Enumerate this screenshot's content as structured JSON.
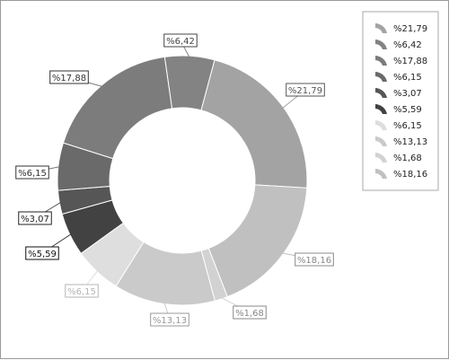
{
  "chart_data": {
    "type": "pie",
    "title": "",
    "values": [
      21.79,
      18.16,
      1.68,
      13.13,
      6.15,
      5.59,
      3.07,
      6.15,
      17.88,
      6.42
    ],
    "labels": [
      "%21,79",
      "%18,16",
      "%1,68",
      "%13,13",
      "%6,15",
      "%5,59",
      "%3,07",
      "%6,15",
      "%17,88",
      "%6,42"
    ],
    "colors": [
      "#a3a3a3",
      "#c0c0c0",
      "#d2d2d2",
      "#cacaca",
      "#dedede",
      "#424242",
      "#565656",
      "#6a6a6a",
      "#7c7c7c",
      "#838383"
    ],
    "label_text_colors": [
      "#555555",
      "#888888",
      "#888888",
      "#999999",
      "#b5b5b5",
      "#111111",
      "#222222",
      "#333333",
      "#333333",
      "#444444"
    ],
    "start_angle_degrees": 15,
    "donut": true,
    "legend": {
      "position": "right",
      "items": [
        "%21,79",
        "%6,42",
        "%17,88",
        "%6,15",
        "%3,07",
        "%5,59",
        "%6,15",
        "%13,13",
        "%1,68",
        "%18,16"
      ],
      "colors": [
        "#a3a3a3",
        "#838383",
        "#7c7c7c",
        "#6a6a6a",
        "#565656",
        "#424242",
        "#dedede",
        "#cacaca",
        "#d2d2d2",
        "#c0c0c0"
      ]
    }
  }
}
